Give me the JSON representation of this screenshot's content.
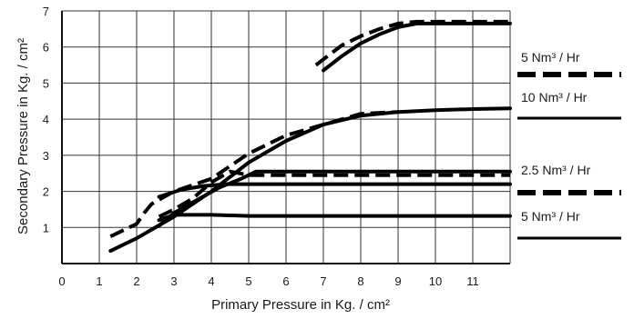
{
  "chart_data": {
    "type": "line",
    "xlabel": "Primary Pressure in Kg. / cm²",
    "ylabel": "Secondary Pressure in Kg. / cm²",
    "xlim": [
      0,
      12
    ],
    "ylim": [
      0,
      7
    ],
    "x_ticks": [
      0,
      1,
      2,
      3,
      4,
      5,
      6,
      7,
      8,
      9,
      10,
      11
    ],
    "y_ticks": [
      1,
      2,
      3,
      4,
      5,
      6,
      7
    ],
    "grid": true,
    "legend_position": "right",
    "legend": [
      {
        "label": "5   Nm³ / Hr",
        "style": "dashed"
      },
      {
        "label": "10  Nm³ / Hr",
        "style": "solid"
      },
      {
        "label": "2.5  Nm³ / Hr",
        "style": "dashed"
      },
      {
        "label": "5   Nm³ / Hr",
        "style": "solid"
      }
    ],
    "series": [
      {
        "style": "solid",
        "points": [
          [
            1.3,
            0.35
          ],
          [
            2.0,
            0.7
          ],
          [
            3.0,
            1.3
          ],
          [
            4.0,
            2.0
          ],
          [
            5.0,
            2.8
          ],
          [
            6.0,
            3.4
          ],
          [
            7.0,
            3.85
          ],
          [
            8.0,
            4.1
          ],
          [
            9.0,
            4.2
          ],
          [
            10.0,
            4.25
          ],
          [
            11.0,
            4.28
          ],
          [
            12.0,
            4.3
          ]
        ]
      },
      {
        "style": "solid",
        "points": [
          [
            2.6,
            1.2
          ],
          [
            3.0,
            1.35
          ],
          [
            4.0,
            1.35
          ],
          [
            5.0,
            1.32
          ],
          [
            6.0,
            1.32
          ],
          [
            8.0,
            1.32
          ],
          [
            10.0,
            1.32
          ],
          [
            12.0,
            1.32
          ]
        ]
      },
      {
        "style": "solid",
        "points": [
          [
            2.6,
            1.05
          ],
          [
            3.0,
            1.4
          ],
          [
            3.6,
            1.75
          ],
          [
            4.2,
            2.1
          ],
          [
            4.8,
            2.35
          ],
          [
            5.2,
            2.55
          ],
          [
            6.0,
            2.55
          ],
          [
            8.0,
            2.55
          ],
          [
            10.0,
            2.55
          ],
          [
            12.0,
            2.55
          ]
        ]
      },
      {
        "style": "solid",
        "points": [
          [
            2.6,
            1.85
          ],
          [
            3.2,
            2.05
          ],
          [
            3.8,
            2.15
          ],
          [
            4.4,
            2.2
          ],
          [
            5.0,
            2.2
          ],
          [
            6.0,
            2.2
          ],
          [
            8.0,
            2.2
          ],
          [
            10.0,
            2.2
          ],
          [
            12.0,
            2.2
          ]
        ]
      },
      {
        "style": "solid",
        "points": [
          [
            7.0,
            5.35
          ],
          [
            7.5,
            5.75
          ],
          [
            8.0,
            6.1
          ],
          [
            8.5,
            6.35
          ],
          [
            9.0,
            6.55
          ],
          [
            9.5,
            6.65
          ],
          [
            10.0,
            6.65
          ],
          [
            11.0,
            6.65
          ],
          [
            12.0,
            6.65
          ]
        ]
      },
      {
        "style": "dashed",
        "points": [
          [
            2.6,
            1.3
          ],
          [
            3.0,
            1.5
          ],
          [
            3.5,
            1.8
          ],
          [
            4.0,
            2.25
          ],
          [
            4.5,
            2.55
          ],
          [
            5.0,
            2.45
          ],
          [
            6.0,
            2.45
          ],
          [
            7.0,
            2.45
          ],
          [
            8.0,
            2.45
          ],
          [
            9.0,
            2.45
          ],
          [
            10.0,
            2.45
          ],
          [
            11.0,
            2.45
          ],
          [
            12.0,
            2.45
          ]
        ]
      },
      {
        "style": "dashed",
        "points": [
          [
            1.3,
            0.75
          ],
          [
            2.0,
            1.1
          ],
          [
            2.2,
            1.4
          ],
          [
            2.4,
            1.65
          ],
          [
            3.0,
            2.0
          ],
          [
            4.0,
            2.35
          ],
          [
            5.0,
            3.05
          ],
          [
            6.0,
            3.55
          ],
          [
            7.0,
            3.85
          ],
          [
            8.0,
            4.15
          ],
          [
            9.0,
            4.2
          ]
        ]
      },
      {
        "style": "dashed",
        "points": [
          [
            6.8,
            5.5
          ],
          [
            7.5,
            6.05
          ],
          [
            8.0,
            6.3
          ],
          [
            8.5,
            6.5
          ],
          [
            9.0,
            6.65
          ],
          [
            9.5,
            6.7
          ],
          [
            10.0,
            6.7
          ],
          [
            11.0,
            6.7
          ],
          [
            12.0,
            6.7
          ]
        ]
      }
    ]
  }
}
